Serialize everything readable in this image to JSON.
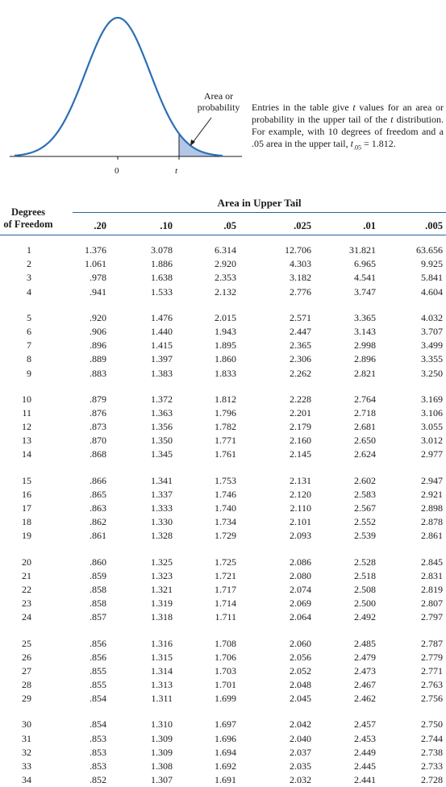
{
  "figure": {
    "area_label_line1": "Area or",
    "area_label_line2": "probability",
    "axis_zero": "0",
    "axis_t": "t",
    "curve_color": "#2b6fb5",
    "shade_color": "#b3c6e8"
  },
  "description": {
    "text1": "Entries in the table give ",
    "t1": "t",
    "text2": " values for an area or probability in the upper tail of the ",
    "t2": "t",
    "text3": " distribution. For example, with 10 degrees of freedom and a .05 area in the upper tail, ",
    "t3": "t",
    "sub": ".05",
    "text4": " = 1.812."
  },
  "table": {
    "super_header": "Area in Upper Tail",
    "dof_header_line1": "Degrees",
    "dof_header_line2": "of Freedom",
    "columns": [
      ".20",
      ".10",
      ".05",
      ".025",
      ".01",
      ".005"
    ],
    "rows": [
      {
        "df": "1",
        "values": [
          "1.376",
          "3.078",
          "6.314",
          "12.706",
          "31.821",
          "63.656"
        ]
      },
      {
        "df": "2",
        "values": [
          "1.061",
          "1.886",
          "2.920",
          "4.303",
          "6.965",
          "9.925"
        ]
      },
      {
        "df": "3",
        "values": [
          ".978",
          "1.638",
          "2.353",
          "3.182",
          "4.541",
          "5.841"
        ]
      },
      {
        "df": "4",
        "values": [
          ".941",
          "1.533",
          "2.132",
          "2.776",
          "3.747",
          "4.604"
        ]
      },
      {
        "df": "5",
        "values": [
          ".920",
          "1.476",
          "2.015",
          "2.571",
          "3.365",
          "4.032"
        ]
      },
      {
        "df": "6",
        "values": [
          ".906",
          "1.440",
          "1.943",
          "2.447",
          "3.143",
          "3.707"
        ]
      },
      {
        "df": "7",
        "values": [
          ".896",
          "1.415",
          "1.895",
          "2.365",
          "2.998",
          "3.499"
        ]
      },
      {
        "df": "8",
        "values": [
          ".889",
          "1.397",
          "1.860",
          "2.306",
          "2.896",
          "3.355"
        ]
      },
      {
        "df": "9",
        "values": [
          ".883",
          "1.383",
          "1.833",
          "2.262",
          "2.821",
          "3.250"
        ]
      },
      {
        "df": "10",
        "values": [
          ".879",
          "1.372",
          "1.812",
          "2.228",
          "2.764",
          "3.169"
        ]
      },
      {
        "df": "11",
        "values": [
          ".876",
          "1.363",
          "1.796",
          "2.201",
          "2.718",
          "3.106"
        ]
      },
      {
        "df": "12",
        "values": [
          ".873",
          "1.356",
          "1.782",
          "2.179",
          "2.681",
          "3.055"
        ]
      },
      {
        "df": "13",
        "values": [
          ".870",
          "1.350",
          "1.771",
          "2.160",
          "2.650",
          "3.012"
        ]
      },
      {
        "df": "14",
        "values": [
          ".868",
          "1.345",
          "1.761",
          "2.145",
          "2.624",
          "2.977"
        ]
      },
      {
        "df": "15",
        "values": [
          ".866",
          "1.341",
          "1.753",
          "2.131",
          "2.602",
          "2.947"
        ]
      },
      {
        "df": "16",
        "values": [
          ".865",
          "1.337",
          "1.746",
          "2.120",
          "2.583",
          "2.921"
        ]
      },
      {
        "df": "17",
        "values": [
          ".863",
          "1.333",
          "1.740",
          "2.110",
          "2.567",
          "2.898"
        ]
      },
      {
        "df": "18",
        "values": [
          ".862",
          "1.330",
          "1.734",
          "2.101",
          "2.552",
          "2.878"
        ]
      },
      {
        "df": "19",
        "values": [
          ".861",
          "1.328",
          "1.729",
          "2.093",
          "2.539",
          "2.861"
        ]
      },
      {
        "df": "20",
        "values": [
          ".860",
          "1.325",
          "1.725",
          "2.086",
          "2.528",
          "2.845"
        ]
      },
      {
        "df": "21",
        "values": [
          ".859",
          "1.323",
          "1.721",
          "2.080",
          "2.518",
          "2.831"
        ]
      },
      {
        "df": "22",
        "values": [
          ".858",
          "1.321",
          "1.717",
          "2.074",
          "2.508",
          "2.819"
        ]
      },
      {
        "df": "23",
        "values": [
          ".858",
          "1.319",
          "1.714",
          "2.069",
          "2.500",
          "2.807"
        ]
      },
      {
        "df": "24",
        "values": [
          ".857",
          "1.318",
          "1.711",
          "2.064",
          "2.492",
          "2.797"
        ]
      },
      {
        "df": "25",
        "values": [
          ".856",
          "1.316",
          "1.708",
          "2.060",
          "2.485",
          "2.787"
        ]
      },
      {
        "df": "26",
        "values": [
          ".856",
          "1.315",
          "1.706",
          "2.056",
          "2.479",
          "2.779"
        ]
      },
      {
        "df": "27",
        "values": [
          ".855",
          "1.314",
          "1.703",
          "2.052",
          "2.473",
          "2.771"
        ]
      },
      {
        "df": "28",
        "values": [
          ".855",
          "1.313",
          "1.701",
          "2.048",
          "2.467",
          "2.763"
        ]
      },
      {
        "df": "29",
        "values": [
          ".854",
          "1.311",
          "1.699",
          "2.045",
          "2.462",
          "2.756"
        ]
      },
      {
        "df": "30",
        "values": [
          ".854",
          "1.310",
          "1.697",
          "2.042",
          "2.457",
          "2.750"
        ]
      },
      {
        "df": "31",
        "values": [
          ".853",
          "1.309",
          "1.696",
          "2.040",
          "2.453",
          "2.744"
        ]
      },
      {
        "df": "32",
        "values": [
          ".853",
          "1.309",
          "1.694",
          "2.037",
          "2.449",
          "2.738"
        ]
      },
      {
        "df": "33",
        "values": [
          ".853",
          "1.308",
          "1.692",
          "2.035",
          "2.445",
          "2.733"
        ]
      },
      {
        "df": "34",
        "values": [
          ".852",
          "1.307",
          "1.691",
          "2.032",
          "2.441",
          "2.728"
        ]
      }
    ]
  }
}
